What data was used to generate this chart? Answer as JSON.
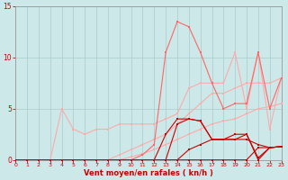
{
  "x": [
    0,
    1,
    2,
    3,
    4,
    5,
    6,
    7,
    8,
    9,
    10,
    11,
    12,
    13,
    14,
    15,
    16,
    17,
    18,
    19,
    20,
    21,
    22,
    23
  ],
  "line_configs": [
    {
      "y": [
        0,
        0,
        0,
        0,
        0,
        0,
        0,
        0,
        0,
        0,
        0,
        0,
        0,
        0,
        0,
        0,
        0,
        0,
        0,
        0,
        0,
        1.2,
        1.2,
        1.3
      ],
      "color": "#cc0000",
      "lw": 0.8,
      "marker": "s",
      "ms": 1.5,
      "zorder": 4
    },
    {
      "y": [
        0,
        0,
        0,
        0,
        0,
        0,
        0,
        0,
        0,
        0,
        0,
        0,
        0,
        0,
        0,
        1,
        1.5,
        2,
        2,
        2,
        2,
        1.5,
        1.2,
        1.3
      ],
      "color": "#cc0000",
      "lw": 0.8,
      "marker": "s",
      "ms": 1.5,
      "zorder": 4
    },
    {
      "y": [
        0,
        0,
        0,
        0,
        0,
        0,
        0,
        0,
        0,
        0,
        0,
        0,
        0,
        2.5,
        4.0,
        4.0,
        3.8,
        2.0,
        2.0,
        2.0,
        2.5,
        0.0,
        1.2,
        1.3
      ],
      "color": "#cc0000",
      "lw": 0.8,
      "marker": "s",
      "ms": 1.5,
      "zorder": 4
    },
    {
      "y": [
        0,
        0,
        0,
        0,
        0,
        0,
        0,
        0,
        0,
        0,
        0,
        0,
        0,
        0,
        3.5,
        4.0,
        3.8,
        2.0,
        2.0,
        2.5,
        2.5,
        0.2,
        1.2,
        1.3
      ],
      "color": "#cc0000",
      "lw": 0.8,
      "marker": "s",
      "ms": 1.5,
      "zorder": 4
    },
    {
      "y": [
        0,
        0,
        0,
        0,
        0,
        0,
        0,
        0,
        0,
        0,
        0.3,
        0.6,
        1.0,
        1.5,
        2.0,
        2.5,
        3.0,
        3.5,
        3.8,
        4.0,
        4.5,
        5.0,
        5.2,
        5.5
      ],
      "color": "#ffaaaa",
      "lw": 0.8,
      "marker": "s",
      "ms": 1.5,
      "zorder": 3
    },
    {
      "y": [
        0,
        0,
        0,
        0,
        0,
        0,
        0,
        0,
        0,
        0.5,
        1.0,
        1.5,
        2.0,
        2.5,
        3.5,
        4.5,
        5.5,
        6.5,
        6.5,
        7.0,
        7.5,
        7.5,
        7.5,
        8.0
      ],
      "color": "#ffaaaa",
      "lw": 0.8,
      "marker": "s",
      "ms": 1.5,
      "zorder": 3
    },
    {
      "y": [
        0,
        0,
        0,
        0,
        5.0,
        3.0,
        2.5,
        3.0,
        3.0,
        3.5,
        3.5,
        3.5,
        3.5,
        4.0,
        4.5,
        7.0,
        7.5,
        7.5,
        7.5,
        10.5,
        5.0,
        10.5,
        3.0,
        8.0
      ],
      "color": "#ffaaaa",
      "lw": 0.8,
      "marker": "s",
      "ms": 1.5,
      "zorder": 3
    },
    {
      "y": [
        0,
        0,
        0,
        0,
        0,
        0,
        0,
        0,
        0,
        0,
        0,
        0.5,
        1.5,
        10.5,
        13.5,
        13.0,
        10.5,
        7.5,
        5.0,
        5.5,
        5.5,
        10.5,
        5.0,
        8.0
      ],
      "color": "#ff6666",
      "lw": 0.8,
      "marker": "s",
      "ms": 1.5,
      "zorder": 3
    }
  ],
  "xlim": [
    0,
    23
  ],
  "ylim": [
    0,
    15
  ],
  "yticks": [
    0,
    5,
    10,
    15
  ],
  "xticks": [
    0,
    1,
    2,
    3,
    4,
    5,
    6,
    7,
    8,
    9,
    10,
    11,
    12,
    13,
    14,
    15,
    16,
    17,
    18,
    19,
    20,
    21,
    22,
    23
  ],
  "xlabel": "Vent moyen/en rafales ( kn/h )",
  "bg_color": "#cce8e8",
  "grid_color": "#aacccc",
  "tick_color": "#cc0000",
  "label_color": "#cc0000",
  "axis_color": "#999999"
}
